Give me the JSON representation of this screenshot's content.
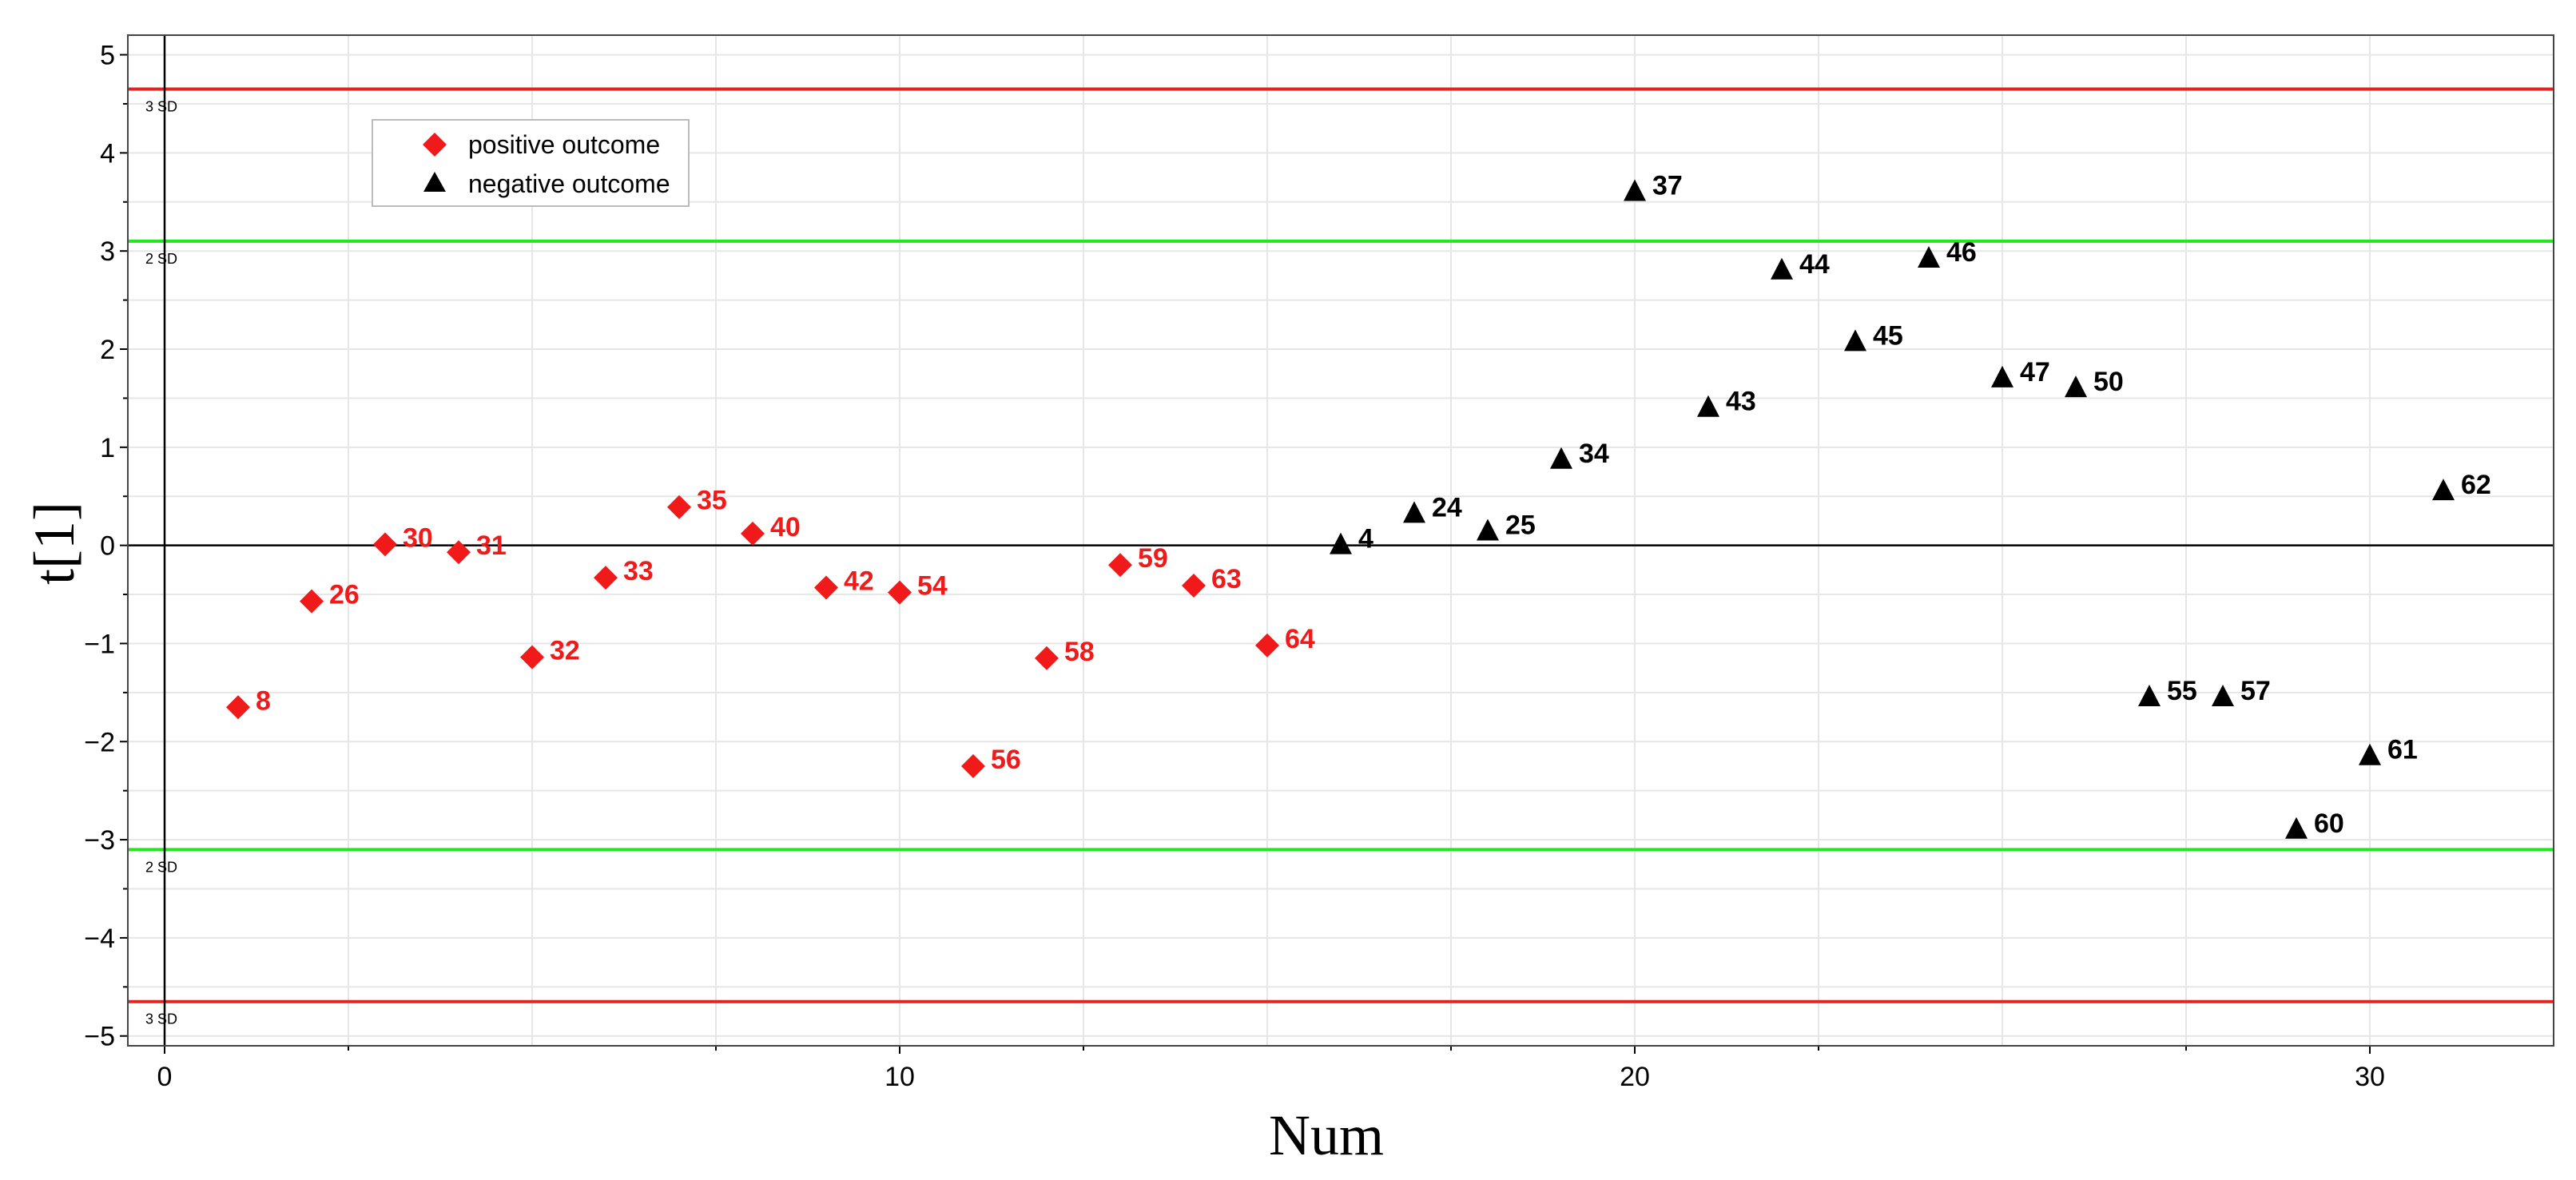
{
  "chart_data": {
    "type": "scatter",
    "title": "",
    "xlabel": "Num",
    "ylabel": "t[1]",
    "xlim": [
      -0.5,
      32.5
    ],
    "ylim": [
      -5.1,
      5.2
    ],
    "grid": true,
    "legend_position": "top-left",
    "x_ticks": [
      0,
      10,
      20,
      30
    ],
    "y_ticks": [
      -5,
      -4,
      -3,
      -2,
      -1,
      0,
      1,
      2,
      3,
      4,
      5
    ],
    "x_tick_labels": [
      "0",
      "10",
      "20",
      "30"
    ],
    "y_tick_labels": [
      "−5",
      "−4",
      "−3",
      "−2",
      "−1",
      "0",
      "1",
      "2",
      "3",
      "4",
      "5"
    ],
    "reference_lines": [
      {
        "y": 4.65,
        "label": "3 SD",
        "color": "#e3231f"
      },
      {
        "y": 3.1,
        "label": "2 SD",
        "color": "#22e61e"
      },
      {
        "y": -3.1,
        "label": "2 SD",
        "color": "#22e61e"
      },
      {
        "y": -4.65,
        "label": "3 SD",
        "color": "#e3231f"
      }
    ],
    "series": [
      {
        "name": "positive outcome",
        "marker": "diamond",
        "color": "#f01a1a",
        "points": [
          {
            "x": 1,
            "y": -1.65,
            "label": "8"
          },
          {
            "x": 2,
            "y": -0.57,
            "label": "26"
          },
          {
            "x": 3,
            "y": 0.01,
            "label": "30"
          },
          {
            "x": 4,
            "y": -0.07,
            "label": "31"
          },
          {
            "x": 5,
            "y": -1.14,
            "label": "32"
          },
          {
            "x": 6,
            "y": -0.33,
            "label": "33"
          },
          {
            "x": 7,
            "y": 0.39,
            "label": "35"
          },
          {
            "x": 8,
            "y": 0.12,
            "label": "40"
          },
          {
            "x": 9,
            "y": -0.43,
            "label": "42"
          },
          {
            "x": 10,
            "y": -0.48,
            "label": "54"
          },
          {
            "x": 11,
            "y": -2.25,
            "label": "56"
          },
          {
            "x": 12,
            "y": -1.15,
            "label": "58"
          },
          {
            "x": 13,
            "y": -0.2,
            "label": "59"
          },
          {
            "x": 14,
            "y": -0.41,
            "label": "63"
          },
          {
            "x": 15,
            "y": -1.02,
            "label": "64"
          }
        ]
      },
      {
        "name": "negative outcome",
        "marker": "triangle",
        "color": "#000000",
        "points": [
          {
            "x": 16,
            "y": 0.0,
            "label": "4"
          },
          {
            "x": 17,
            "y": 0.32,
            "label": "24"
          },
          {
            "x": 18,
            "y": 0.14,
            "label": "25"
          },
          {
            "x": 19,
            "y": 0.87,
            "label": "34"
          },
          {
            "x": 20,
            "y": 3.6,
            "label": "37"
          },
          {
            "x": 21,
            "y": 1.4,
            "label": "43"
          },
          {
            "x": 22,
            "y": 2.8,
            "label": "44"
          },
          {
            "x": 23,
            "y": 2.07,
            "label": "45"
          },
          {
            "x": 24,
            "y": 2.92,
            "label": "46"
          },
          {
            "x": 25,
            "y": 1.7,
            "label": "47"
          },
          {
            "x": 26,
            "y": 1.6,
            "label": "50"
          },
          {
            "x": 27,
            "y": -1.55,
            "label": "55"
          },
          {
            "x": 28,
            "y": -1.55,
            "label": "57"
          },
          {
            "x": 29,
            "y": -2.9,
            "label": "60"
          },
          {
            "x": 30,
            "y": -2.15,
            "label": "61"
          },
          {
            "x": 31,
            "y": 0.55,
            "label": "62"
          }
        ]
      }
    ]
  }
}
